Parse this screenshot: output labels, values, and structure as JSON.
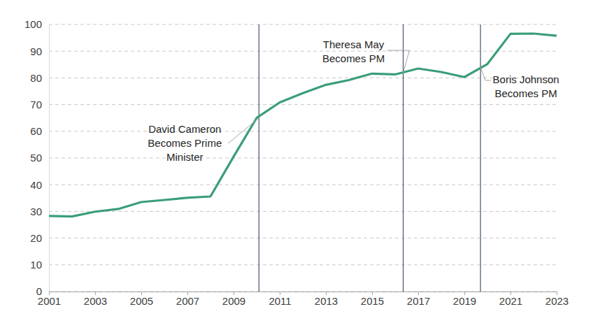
{
  "chart_data": {
    "type": "line",
    "x": [
      2001,
      2002,
      2003,
      2004,
      2005,
      2006,
      2007,
      2008,
      2009,
      2010,
      2011,
      2012,
      2013,
      2014,
      2015,
      2016,
      2017,
      2018,
      2019,
      2020,
      2021,
      2022,
      2023
    ],
    "values": [
      28.3,
      28.1,
      29.9,
      30.9,
      33.5,
      34.3,
      35.1,
      35.6,
      50.5,
      65.0,
      70.8,
      74.3,
      77.4,
      79.2,
      81.6,
      81.3,
      83.5,
      82.2,
      80.3,
      85.2,
      96.5,
      96.6,
      95.8
    ],
    "color": "#3a9e78",
    "xlim": [
      2001,
      2023
    ],
    "xticks": [
      2001,
      2003,
      2005,
      2007,
      2009,
      2011,
      2013,
      2015,
      2017,
      2019,
      2021,
      2023
    ],
    "ylim": [
      0,
      100
    ],
    "yticks": [
      0,
      10,
      20,
      30,
      40,
      50,
      60,
      70,
      80,
      90,
      100
    ],
    "grid": true,
    "annotations": [
      {
        "lines": [
          "David Cameron",
          "Becomes Prime",
          "Minister"
        ],
        "x": 2010.1,
        "y": 65
      },
      {
        "lines": [
          "Theresa May",
          "Becomes PM"
        ],
        "x": 2016.35,
        "y": 82
      },
      {
        "lines": [
          "Boris Johnson",
          "Becomes PM"
        ],
        "x": 2019.7,
        "y": 84
      }
    ]
  }
}
